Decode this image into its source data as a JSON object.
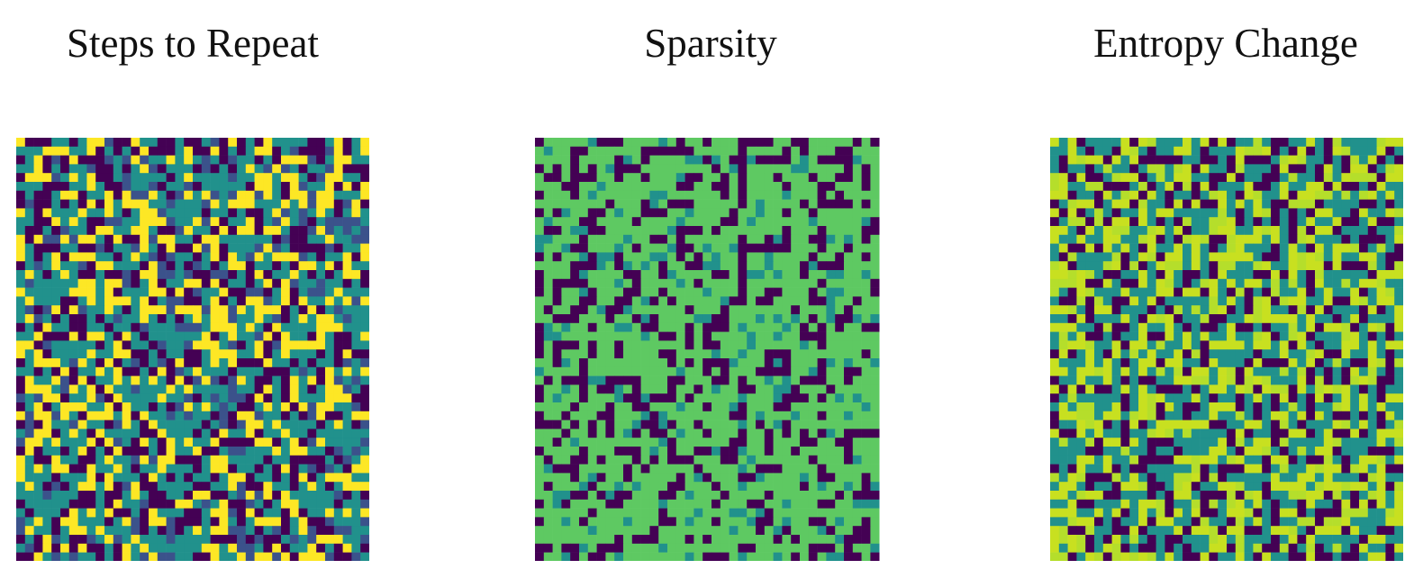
{
  "palette": {
    "viridis_dark": "#440154",
    "viridis_blue": "#3b528b",
    "viridis_teal": "#21918c",
    "viridis_green": "#5ec962",
    "viridis_yellow": "#fde725"
  },
  "panels": [
    {
      "title": "Steps to Repeat",
      "rule": 90,
      "seed": 11,
      "scheme": "teal"
    },
    {
      "title": "Sparsity",
      "rule": 110,
      "seed": 29,
      "scheme": "green"
    },
    {
      "title": "Entropy Change",
      "rule": 30,
      "seed": 47,
      "scheme": "lime"
    }
  ]
}
